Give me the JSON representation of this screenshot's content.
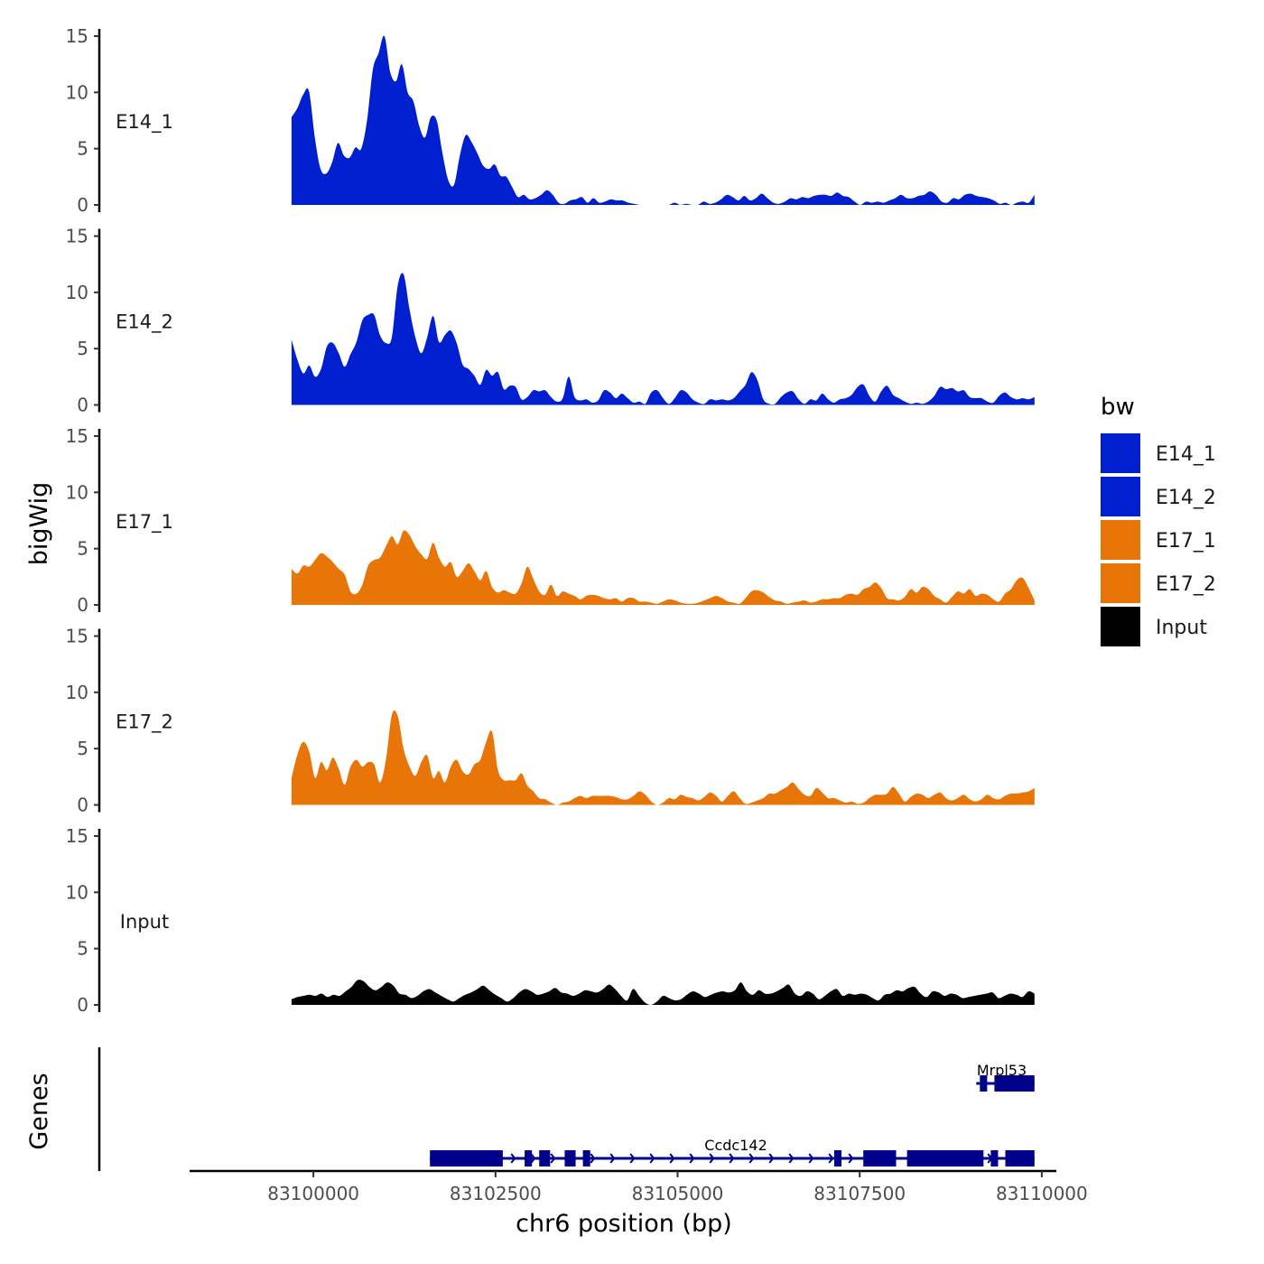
{
  "chart_data": {
    "type": "area",
    "y_axis_title": "bigWig",
    "genes_axis_title": "Genes",
    "x_axis_title": "chr6 position (bp)",
    "xlim": [
      83098300,
      83110200
    ],
    "data_xrange": [
      83099700,
      83109900
    ],
    "x_ticks": [
      83100000,
      83102500,
      83105000,
      83107500,
      83110000
    ],
    "x_tick_labels": [
      "83100000",
      "83102500",
      "83105000",
      "83107500",
      "83110000"
    ],
    "ylim": [
      0,
      15
    ],
    "y_ticks": [
      0,
      5,
      10,
      15
    ],
    "y_tick_labels": [
      "0",
      "5",
      "10",
      "15"
    ],
    "legend": {
      "title": "bw",
      "entries": [
        {
          "label": "E14_1",
          "color": "#0020d0"
        },
        {
          "label": "E14_2",
          "color": "#0020d0"
        },
        {
          "label": "E17_1",
          "color": "#e87507"
        },
        {
          "label": "E17_2",
          "color": "#e87507"
        },
        {
          "label": "Input",
          "color": "#000000"
        }
      ]
    },
    "series": [
      {
        "name": "E14_1",
        "color": "#0020d0",
        "values": [
          7.8,
          8.6,
          9.8,
          10.1,
          6,
          3.2,
          2.8,
          3.8,
          5.5,
          4.4,
          4.2,
          5.1,
          5,
          7.5,
          12,
          13.5,
          15,
          11.8,
          11,
          12.5,
          10,
          9.2,
          7,
          6,
          7.8,
          7.5,
          4.6,
          2.2,
          1.8,
          4.4,
          6.2,
          5.6,
          4.6,
          3.5,
          3.2,
          3.6,
          2.6,
          2.5,
          1.6,
          0.7,
          0.9,
          0.5,
          0.6,
          0.9,
          1.3,
          0.9,
          0.2,
          0.1,
          0.4,
          0.5,
          0.7,
          0.2,
          0.6,
          0.2,
          0.3,
          0.5,
          0.4,
          0.4,
          0.2,
          0.1,
          0,
          0,
          0,
          0,
          0,
          0,
          0.2,
          0,
          0.1,
          0,
          0,
          0.3,
          0.1,
          0.2,
          0.5,
          0.9,
          0.7,
          0.4,
          0.8,
          0.4,
          0.6,
          1,
          0.6,
          0.2,
          0.1,
          0.3,
          0.6,
          0.5,
          0.7,
          0.6,
          0.8,
          0.9,
          0.9,
          0.8,
          1.1,
          0.8,
          0.7,
          0.3,
          0,
          0.3,
          0.2,
          0.3,
          0.2,
          0.4,
          0.6,
          0.9,
          0.6,
          0.6,
          0.8,
          0.9,
          1.2,
          0.9,
          0.3,
          0.2,
          0.6,
          0.5,
          0.9,
          1,
          0.8,
          0.7,
          0.6,
          0.4,
          0.1,
          0.2,
          0,
          0.2,
          0.3,
          0.2,
          0.9
        ]
      },
      {
        "name": "E14_2",
        "color": "#0020d0",
        "values": [
          5.8,
          4,
          2.8,
          3.5,
          2.5,
          3.2,
          5.2,
          5.5,
          4.6,
          3.4,
          4.5,
          5.6,
          7.5,
          8,
          8,
          6.2,
          5.5,
          6,
          10.6,
          11.6,
          8.5,
          6,
          4.6,
          6,
          7.9,
          5.6,
          6.2,
          6.6,
          5.5,
          3.6,
          3.2,
          2.6,
          1.8,
          3.1,
          2.6,
          2.9,
          1.4,
          1.7,
          1.6,
          0.5,
          0.7,
          1.3,
          1.2,
          1.3,
          0.7,
          0.3,
          0.6,
          2.5,
          0.7,
          0.4,
          0.5,
          0.2,
          0.4,
          1.3,
          1.1,
          0.6,
          1,
          0.6,
          0.2,
          0.3,
          0.1,
          1.1,
          1.3,
          0.6,
          0.1,
          0.6,
          1.3,
          1.1,
          0.5,
          0.2,
          0.1,
          0.5,
          0.4,
          0.5,
          0.4,
          0.6,
          1.2,
          1.8,
          2.9,
          2.2,
          0.5,
          0.1,
          0.1,
          0.7,
          1.1,
          1.2,
          0.5,
          0.1,
          0.5,
          0.4,
          1,
          0.5,
          0.2,
          0.5,
          0.6,
          0.9,
          1.6,
          1.8,
          0.8,
          0.3,
          1.2,
          1.7,
          0.9,
          0.6,
          0.3,
          0.1,
          0.2,
          0.1,
          0.3,
          0.8,
          1.6,
          1.4,
          1.5,
          1.2,
          1.3,
          0.7,
          0.6,
          0.6,
          0.3,
          0.2,
          0.8,
          1.1,
          0.7,
          0.5,
          0.6,
          0.5,
          0.7
        ]
      },
      {
        "name": "E17_1",
        "color": "#e87507",
        "values": [
          3.2,
          2.8,
          3.5,
          3.4,
          4,
          4.6,
          4.3,
          3.8,
          3.2,
          2.7,
          1.2,
          1,
          1.8,
          3.5,
          4,
          4.2,
          5.2,
          6.1,
          5.4,
          6.6,
          6.2,
          5.2,
          4.5,
          4.1,
          5.5,
          4.2,
          3.4,
          3.8,
          2.5,
          3,
          3.7,
          3,
          2.2,
          3,
          1.6,
          1.1,
          1.3,
          1.1,
          1,
          1.9,
          3.4,
          2.3,
          1.2,
          0.9,
          1.8,
          0.8,
          1.2,
          1,
          0.8,
          0.5,
          0.8,
          0.9,
          0.8,
          0.6,
          0.5,
          0.6,
          0.3,
          0.6,
          0.6,
          0.3,
          0.3,
          0.2,
          0.1,
          0.3,
          0.5,
          0.4,
          0.2,
          0.1,
          0.1,
          0.2,
          0.4,
          0.6,
          0.8,
          0.6,
          0.3,
          0.2,
          0.1,
          0.6,
          1.2,
          1.3,
          1.1,
          0.7,
          0.4,
          0.3,
          0.1,
          0.2,
          0.3,
          0.4,
          0.2,
          0.3,
          0.5,
          0.5,
          0.6,
          0.6,
          0.9,
          1,
          0.9,
          1.4,
          1.6,
          2,
          1.5,
          0.6,
          0.5,
          0.4,
          0.7,
          1.4,
          1.1,
          1.6,
          1.4,
          0.8,
          0.5,
          0.2,
          0.7,
          1.2,
          1,
          1.4,
          0.8,
          1,
          0.9,
          0.5,
          0.3,
          1,
          1.4,
          2.2,
          2.4,
          1.5,
          0.4
        ]
      },
      {
        "name": "E17_2",
        "color": "#e87507",
        "values": [
          2.4,
          4.5,
          5.6,
          4.7,
          2.4,
          3.8,
          3.1,
          4.2,
          3.2,
          1.8,
          3.4,
          4,
          3.4,
          3.8,
          3.6,
          2,
          4,
          8,
          7.9,
          5,
          3.4,
          2.6,
          3.8,
          4.4,
          2.4,
          3,
          2,
          3.4,
          4,
          3,
          2.7,
          3.6,
          4,
          5.6,
          6.5,
          3.1,
          2.2,
          2.2,
          2.2,
          2.8,
          1.7,
          1.2,
          0.6,
          0.5,
          0.2,
          0,
          0.2,
          0.3,
          0.6,
          0.8,
          0.6,
          0.8,
          0.8,
          0.8,
          0.8,
          0.7,
          0.5,
          0.5,
          0.8,
          1.2,
          0.9,
          0.3,
          0,
          0.2,
          0.6,
          0.5,
          0.9,
          0.7,
          0.6,
          0.4,
          0.7,
          1.1,
          0.8,
          0.3,
          0.8,
          1.2,
          0.6,
          0.1,
          0.2,
          0.4,
          0.6,
          1,
          1,
          1.3,
          1.6,
          2,
          1.4,
          0.9,
          0.8,
          1.5,
          1.1,
          0.6,
          0.6,
          0.4,
          0.2,
          0.3,
          0.1,
          0.2,
          0.6,
          0.9,
          0.9,
          1,
          1.6,
          1,
          0.3,
          0.7,
          1,
          0.9,
          0.6,
          0.9,
          1.1,
          0.6,
          0.4,
          0.6,
          0.9,
          0.5,
          0.3,
          0.5,
          0.9,
          0.6,
          0.5,
          0.8,
          1,
          1,
          1.1,
          1.2,
          1.5
        ]
      },
      {
        "name": "Input",
        "color": "#000000",
        "values": [
          0.5,
          0.7,
          0.8,
          0.9,
          0.8,
          1,
          0.7,
          0.9,
          0.8,
          1.2,
          1.6,
          2.2,
          2.1,
          1.6,
          1.3,
          1.6,
          2,
          1.7,
          1,
          0.9,
          0.6,
          0.8,
          1.2,
          1.4,
          1.1,
          0.8,
          0.5,
          0.3,
          0.6,
          0.9,
          1.1,
          1.4,
          1.7,
          1.3,
          0.9,
          0.6,
          0.3,
          0.6,
          1.1,
          1.4,
          1.2,
          0.9,
          1,
          1.2,
          1.5,
          1.1,
          1,
          0.8,
          1,
          1.3,
          1.2,
          1.1,
          1.4,
          1.8,
          1.4,
          0.8,
          0.4,
          1.4,
          0.8,
          0.2,
          0,
          0.3,
          0.8,
          0.6,
          0.4,
          0.5,
          0.9,
          1.2,
          1,
          0.7,
          0.9,
          1.1,
          1.2,
          1.1,
          1.3,
          2,
          1.2,
          0.9,
          1.3,
          1,
          1,
          1.2,
          1.5,
          1.8,
          1,
          0.8,
          1.2,
          1,
          0.5,
          0.8,
          1.2,
          1.4,
          0.8,
          1,
          0.9,
          1,
          0.9,
          0.6,
          0.4,
          0.9,
          1,
          1.3,
          1.2,
          1.5,
          1.6,
          1,
          0.7,
          1.2,
          1.1,
          0.8,
          1,
          0.9,
          0.6,
          0.7,
          0.8,
          0.9,
          1,
          1.1,
          0.6,
          0.8,
          1,
          0.9,
          0.7,
          1.2,
          1
        ]
      }
    ],
    "genes": [
      {
        "name": "Ccdc142",
        "start": 83101600,
        "end": 83109900,
        "strand": "+",
        "row": "lower",
        "label_x": 83105800,
        "exons": [
          [
            83101600,
            83102600
          ],
          [
            83102900,
            83103000
          ],
          [
            83103100,
            83103250
          ],
          [
            83103450,
            83103600
          ],
          [
            83103700,
            83103800
          ],
          [
            83107150,
            83107250
          ],
          [
            83107550,
            83108000
          ],
          [
            83108150,
            83109200
          ],
          [
            83109300,
            83109400
          ],
          [
            83109500,
            83109900
          ]
        ]
      },
      {
        "name": "Mrpl53",
        "start": 83109100,
        "end": 83109900,
        "strand": "-",
        "row": "upper",
        "label_x": 83109450,
        "exons": [
          [
            83109150,
            83109250
          ],
          [
            83109350,
            83109900
          ]
        ]
      }
    ]
  }
}
